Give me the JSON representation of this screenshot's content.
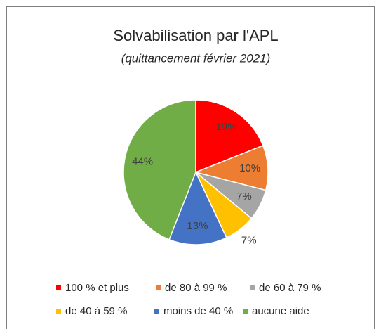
{
  "chart_data": {
    "type": "pie",
    "title": "Solvabilisation par l'APL",
    "subtitle": "(quittancement février 2021)",
    "categories": [
      "100 % et plus",
      "de 80 à 99 %",
      "de 60 à 79 %",
      "de 40 à 59 %",
      "moins de 40 %",
      "aucune aide"
    ],
    "values": [
      19,
      10,
      7,
      7,
      13,
      44
    ],
    "value_labels": [
      "19%",
      "10%",
      "7%",
      "7%",
      "13%",
      "44%"
    ],
    "colors": [
      "#ff0000",
      "#ed7d31",
      "#a5a5a5",
      "#ffc000",
      "#4472c4",
      "#70ad47"
    ],
    "legend": "bottom"
  }
}
